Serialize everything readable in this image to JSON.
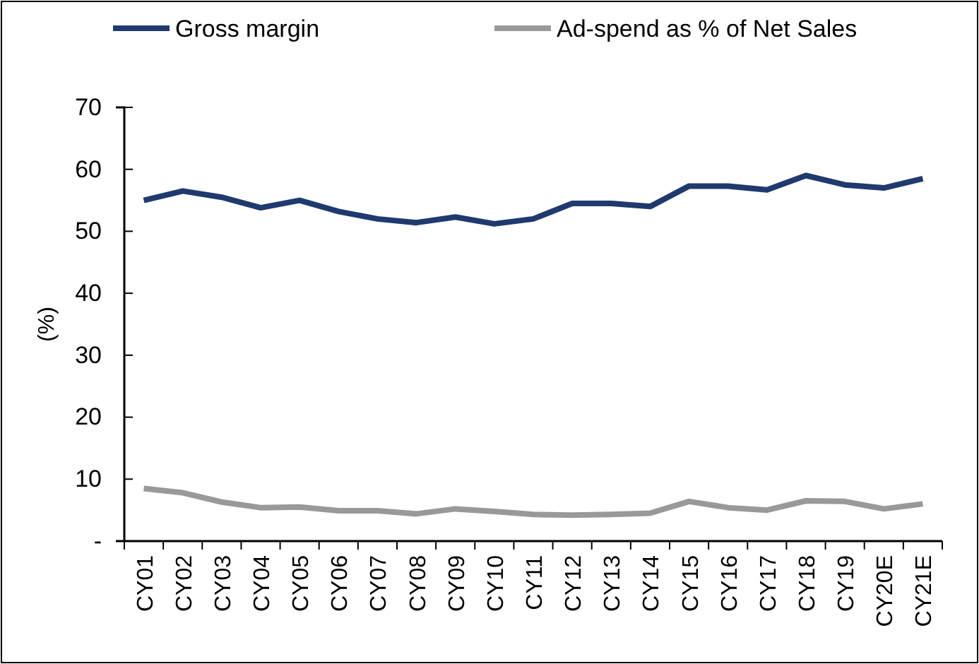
{
  "chart_data": {
    "type": "line",
    "ylabel": "(%)",
    "categories": [
      "CY01",
      "CY02",
      "CY03",
      "CY04",
      "CY05",
      "CY06",
      "CY07",
      "CY08",
      "CY09",
      "CY10",
      "CY11",
      "CY12",
      "CY13",
      "CY14",
      "CY15",
      "CY16",
      "CY17",
      "CY18",
      "CY19",
      "CY20E",
      "CY21E"
    ],
    "series": [
      {
        "name": "Gross margin",
        "color": "#1f3a6e",
        "values": [
          55,
          56.5,
          55.5,
          53.8,
          55,
          53.2,
          52,
          51.4,
          52.3,
          51.2,
          52,
          54.5,
          54.5,
          54,
          57.3,
          57.3,
          56.7,
          59,
          57.5,
          57,
          58.5
        ]
      },
      {
        "name": "Ad-spend as % of Net Sales",
        "color": "#999999",
        "values": [
          8.5,
          7.8,
          6.3,
          5.4,
          5.5,
          4.9,
          4.9,
          4.4,
          5.2,
          4.8,
          4.3,
          4.2,
          4.3,
          4.5,
          6.4,
          5.4,
          5,
          6.5,
          6.4,
          5.2,
          6
        ]
      }
    ],
    "ylim": [
      0,
      70
    ],
    "yticks": [
      {
        "value": 0,
        "label": "-"
      },
      10,
      20,
      30,
      40,
      50,
      60,
      70
    ],
    "grid": false,
    "legend": "top",
    "marker": "none",
    "line_style": "solid"
  }
}
